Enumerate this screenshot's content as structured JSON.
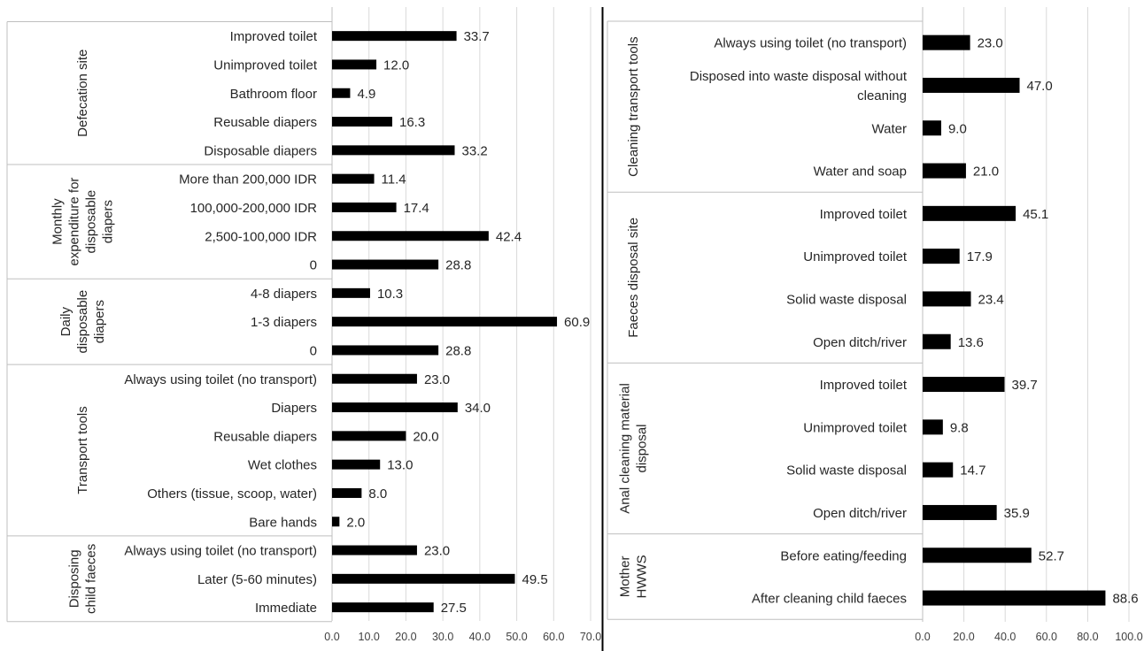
{
  "chart_data": [
    {
      "type": "bar",
      "orientation": "horizontal",
      "xlim": [
        0,
        70
      ],
      "ticks": [
        "0.0",
        "10.0",
        "20.0",
        "30.0",
        "40.0",
        "50.0",
        "60.0",
        "70.0"
      ],
      "grid": true,
      "groups": [
        {
          "name": "Defecation site",
          "lines": [
            "Defecation site"
          ],
          "categories": [
            {
              "label": "Improved toilet",
              "value": 33.7
            },
            {
              "label": "Unimproved toilet",
              "value": 12.0
            },
            {
              "label": "Bathroom floor",
              "value": 4.9
            },
            {
              "label": "Reusable diapers",
              "value": 16.3
            },
            {
              "label": "Disposable diapers",
              "value": 33.2
            }
          ]
        },
        {
          "name": "Monthly expenditure for disposable diapers",
          "lines": [
            "Monthly",
            "expenditure for",
            "disposable",
            "diapers"
          ],
          "categories": [
            {
              "label": "More than 200,000 IDR",
              "value": 11.4
            },
            {
              "label": "100,000-200,000 IDR",
              "value": 17.4
            },
            {
              "label": "2,500-100,000 IDR",
              "value": 42.4
            },
            {
              "label": "0",
              "value": 28.8
            }
          ]
        },
        {
          "name": "Daily disposable diapers",
          "lines": [
            "Daily",
            "disposable",
            "diapers"
          ],
          "categories": [
            {
              "label": "4-8 diapers",
              "value": 10.3
            },
            {
              "label": "1-3 diapers",
              "value": 60.9
            },
            {
              "label": "0",
              "value": 28.8
            }
          ]
        },
        {
          "name": "Transport tools",
          "lines": [
            "Transport tools"
          ],
          "categories": [
            {
              "label": "Always using toilet (no transport)",
              "value": 23.0
            },
            {
              "label": "Diapers",
              "value": 34.0
            },
            {
              "label": "Reusable diapers",
              "value": 20.0
            },
            {
              "label": "Wet clothes",
              "value": 13.0
            },
            {
              "label": "Others (tissue, scoop, water)",
              "value": 8.0
            },
            {
              "label": "Bare hands",
              "value": 2.0
            }
          ]
        },
        {
          "name": "Disposing child faeces",
          "lines": [
            "Disposing",
            "child faeces"
          ],
          "categories": [
            {
              "label": "Always using toilet (no transport)",
              "value": 23.0
            },
            {
              "label": "Later (5-60 minutes)",
              "value": 49.5
            },
            {
              "label": "Immediate",
              "value": 27.5
            }
          ]
        }
      ]
    },
    {
      "type": "bar",
      "orientation": "horizontal",
      "xlim": [
        0,
        100
      ],
      "ticks": [
        "0.0",
        "20.0",
        "40.0",
        "60.0",
        "80.0",
        "100.0"
      ],
      "grid": true,
      "groups": [
        {
          "name": "Cleaning transport tools",
          "lines": [
            "Cleaning transport tools"
          ],
          "categories": [
            {
              "label": "Always using toilet (no transport)",
              "value": 23.0
            },
            {
              "label": "Disposed into waste disposal without cleaning",
              "lines": [
                "Disposed into waste disposal without",
                "cleaning"
              ],
              "value": 47.0
            },
            {
              "label": "Water",
              "value": 9.0
            },
            {
              "label": "Water and soap",
              "value": 21.0
            }
          ]
        },
        {
          "name": "Faeces disposal site",
          "lines": [
            "Faeces disposal site"
          ],
          "categories": [
            {
              "label": "Improved toilet",
              "value": 45.1
            },
            {
              "label": "Unimproved toilet",
              "value": 17.9
            },
            {
              "label": "Solid waste disposal",
              "value": 23.4
            },
            {
              "label": "Open ditch/river",
              "value": 13.6
            }
          ]
        },
        {
          "name": "Anal cleaning material disposal",
          "lines": [
            "Anal cleaning material",
            "disposal"
          ],
          "categories": [
            {
              "label": "Improved toilet",
              "value": 39.7
            },
            {
              "label": "Unimproved toilet",
              "value": 9.8
            },
            {
              "label": "Solid waste disposal",
              "value": 14.7
            },
            {
              "label": "Open ditch/river",
              "value": 35.9
            }
          ]
        },
        {
          "name": "Mother HWWS",
          "lines": [
            "Mother",
            "HWWS"
          ],
          "categories": [
            {
              "label": "Before eating/feeding",
              "value": 52.7
            },
            {
              "label": "After cleaning child faeces",
              "value": 88.6
            }
          ]
        }
      ]
    }
  ],
  "style": {
    "bar_color": "#000000",
    "grid_color": "#d9d9d9",
    "axis_color": "#bfbfbf",
    "divider_color": "#000000"
  }
}
